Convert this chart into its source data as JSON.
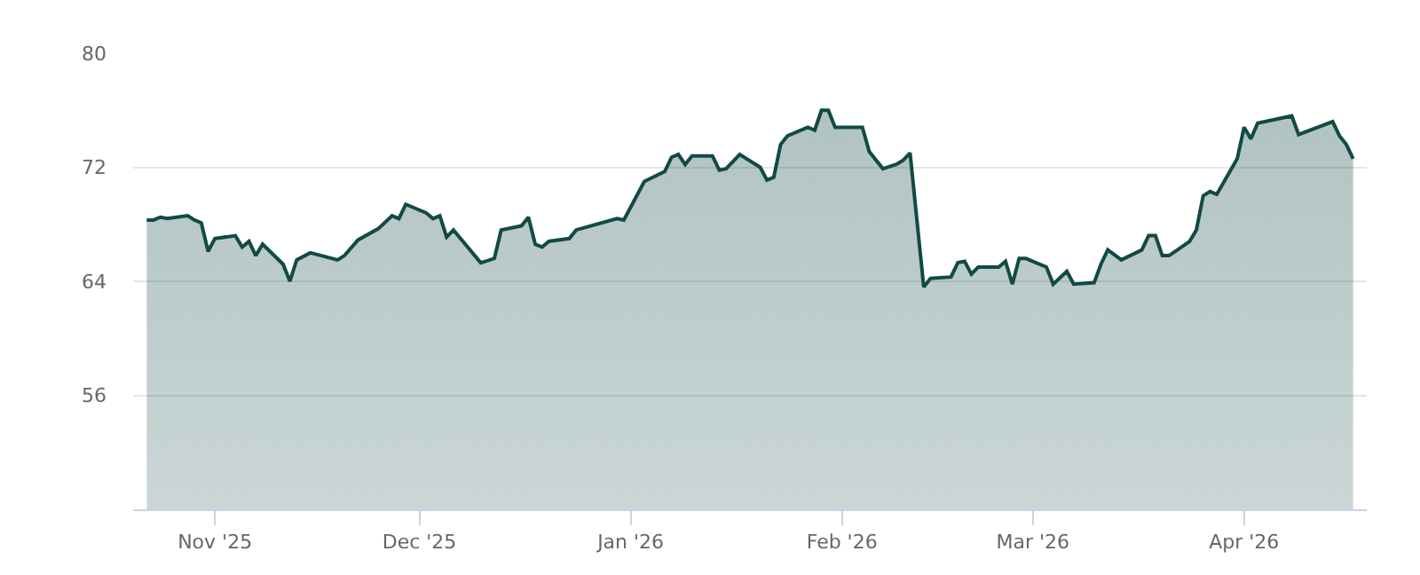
{
  "chart_data": {
    "type": "area",
    "color": "#124a44",
    "grid": "y",
    "legend": false,
    "x": [
      "2025-10-22",
      "2025-10-23",
      "2025-10-24",
      "2025-10-25",
      "2025-10-28",
      "2025-10-29",
      "2025-10-30",
      "2025-10-31",
      "2025-11-01",
      "2025-11-04",
      "2025-11-05",
      "2025-11-06",
      "2025-11-07",
      "2025-11-08",
      "2025-11-11",
      "2025-11-12",
      "2025-11-13",
      "2025-11-15",
      "2025-11-19",
      "2025-11-20",
      "2025-11-22",
      "2025-11-25",
      "2025-11-27",
      "2025-11-28",
      "2025-11-29",
      "2025-12-02",
      "2025-12-03",
      "2025-12-04",
      "2025-12-05",
      "2025-12-06",
      "2025-12-10",
      "2025-12-12",
      "2025-12-13",
      "2025-12-16",
      "2025-12-17",
      "2025-12-18",
      "2025-12-19",
      "2025-12-20",
      "2025-12-23",
      "2025-12-24",
      "2025-12-30",
      "2025-12-31",
      "2026-01-03",
      "2026-01-06",
      "2026-01-07",
      "2026-01-08",
      "2026-01-09",
      "2026-01-10",
      "2026-01-13",
      "2026-01-14",
      "2026-01-15",
      "2026-01-17",
      "2026-01-20",
      "2026-01-21",
      "2026-01-22",
      "2026-01-23",
      "2026-01-24",
      "2026-01-27",
      "2026-01-28",
      "2026-01-29",
      "2026-01-30",
      "2026-01-31",
      "2026-02-04",
      "2026-02-05",
      "2026-02-07",
      "2026-02-09",
      "2026-02-10",
      "2026-02-11",
      "2026-02-13",
      "2026-02-14",
      "2026-02-17",
      "2026-02-18",
      "2026-02-19",
      "2026-02-20",
      "2026-02-21",
      "2026-02-24",
      "2026-02-25",
      "2026-02-26",
      "2026-02-27",
      "2026-02-28",
      "2026-03-03",
      "2026-03-04",
      "2026-03-06",
      "2026-03-07",
      "2026-03-10",
      "2026-03-11",
      "2026-03-12",
      "2026-03-14",
      "2026-03-17",
      "2026-03-18",
      "2026-03-19",
      "2026-03-20",
      "2026-03-21",
      "2026-03-24",
      "2026-03-25",
      "2026-03-26",
      "2026-03-27",
      "2026-03-28",
      "2026-03-31",
      "2026-04-01",
      "2026-04-02",
      "2026-04-03",
      "2026-04-07",
      "2026-04-08",
      "2026-04-09",
      "2026-04-14",
      "2026-04-15",
      "2026-04-16",
      "2026-04-17"
    ],
    "values": [
      68.3,
      68.3,
      68.5,
      68.4,
      68.6,
      68.3,
      68.1,
      66.1,
      67.0,
      67.2,
      66.4,
      66.8,
      65.8,
      66.6,
      65.2,
      64.0,
      65.5,
      66.0,
      65.5,
      65.8,
      66.9,
      67.7,
      68.6,
      68.4,
      69.4,
      68.8,
      68.4,
      68.6,
      67.1,
      67.6,
      65.3,
      65.6,
      67.6,
      67.9,
      68.5,
      66.6,
      66.4,
      66.8,
      67.0,
      67.6,
      68.4,
      68.3,
      71.0,
      71.7,
      72.7,
      72.9,
      72.2,
      72.8,
      72.8,
      71.8,
      71.9,
      72.9,
      72.0,
      71.1,
      71.3,
      73.6,
      74.2,
      74.8,
      74.6,
      76.0,
      76.0,
      74.8,
      74.8,
      73.1,
      71.9,
      72.2,
      72.5,
      73.0,
      63.6,
      64.2,
      64.3,
      65.3,
      65.4,
      64.5,
      65.0,
      65.0,
      65.4,
      63.8,
      65.6,
      65.6,
      65.0,
      63.8,
      64.7,
      63.8,
      63.9,
      65.2,
      66.2,
      65.5,
      66.2,
      67.2,
      67.2,
      65.8,
      65.8,
      66.8,
      67.6,
      70.0,
      70.3,
      70.1,
      72.6,
      74.8,
      74.0,
      75.1,
      75.5,
      75.6,
      74.3,
      75.2,
      74.2,
      73.6,
      72.6
    ],
    "xlim": [
      "2025-10-20",
      "2026-04-19"
    ],
    "xticks": [
      {
        "value": "2025-11-01",
        "label": "Nov '25"
      },
      {
        "value": "2025-12-01",
        "label": "Dec '25"
      },
      {
        "value": "2026-01-01",
        "label": "Jan '26"
      },
      {
        "value": "2026-02-01",
        "label": "Feb '26"
      },
      {
        "value": "2026-03-01",
        "label": "Mar '26"
      },
      {
        "value": "2026-04-01",
        "label": "Apr '26"
      }
    ],
    "ylim": [
      48,
      80
    ],
    "yticks": [
      56,
      64,
      72,
      80
    ]
  }
}
